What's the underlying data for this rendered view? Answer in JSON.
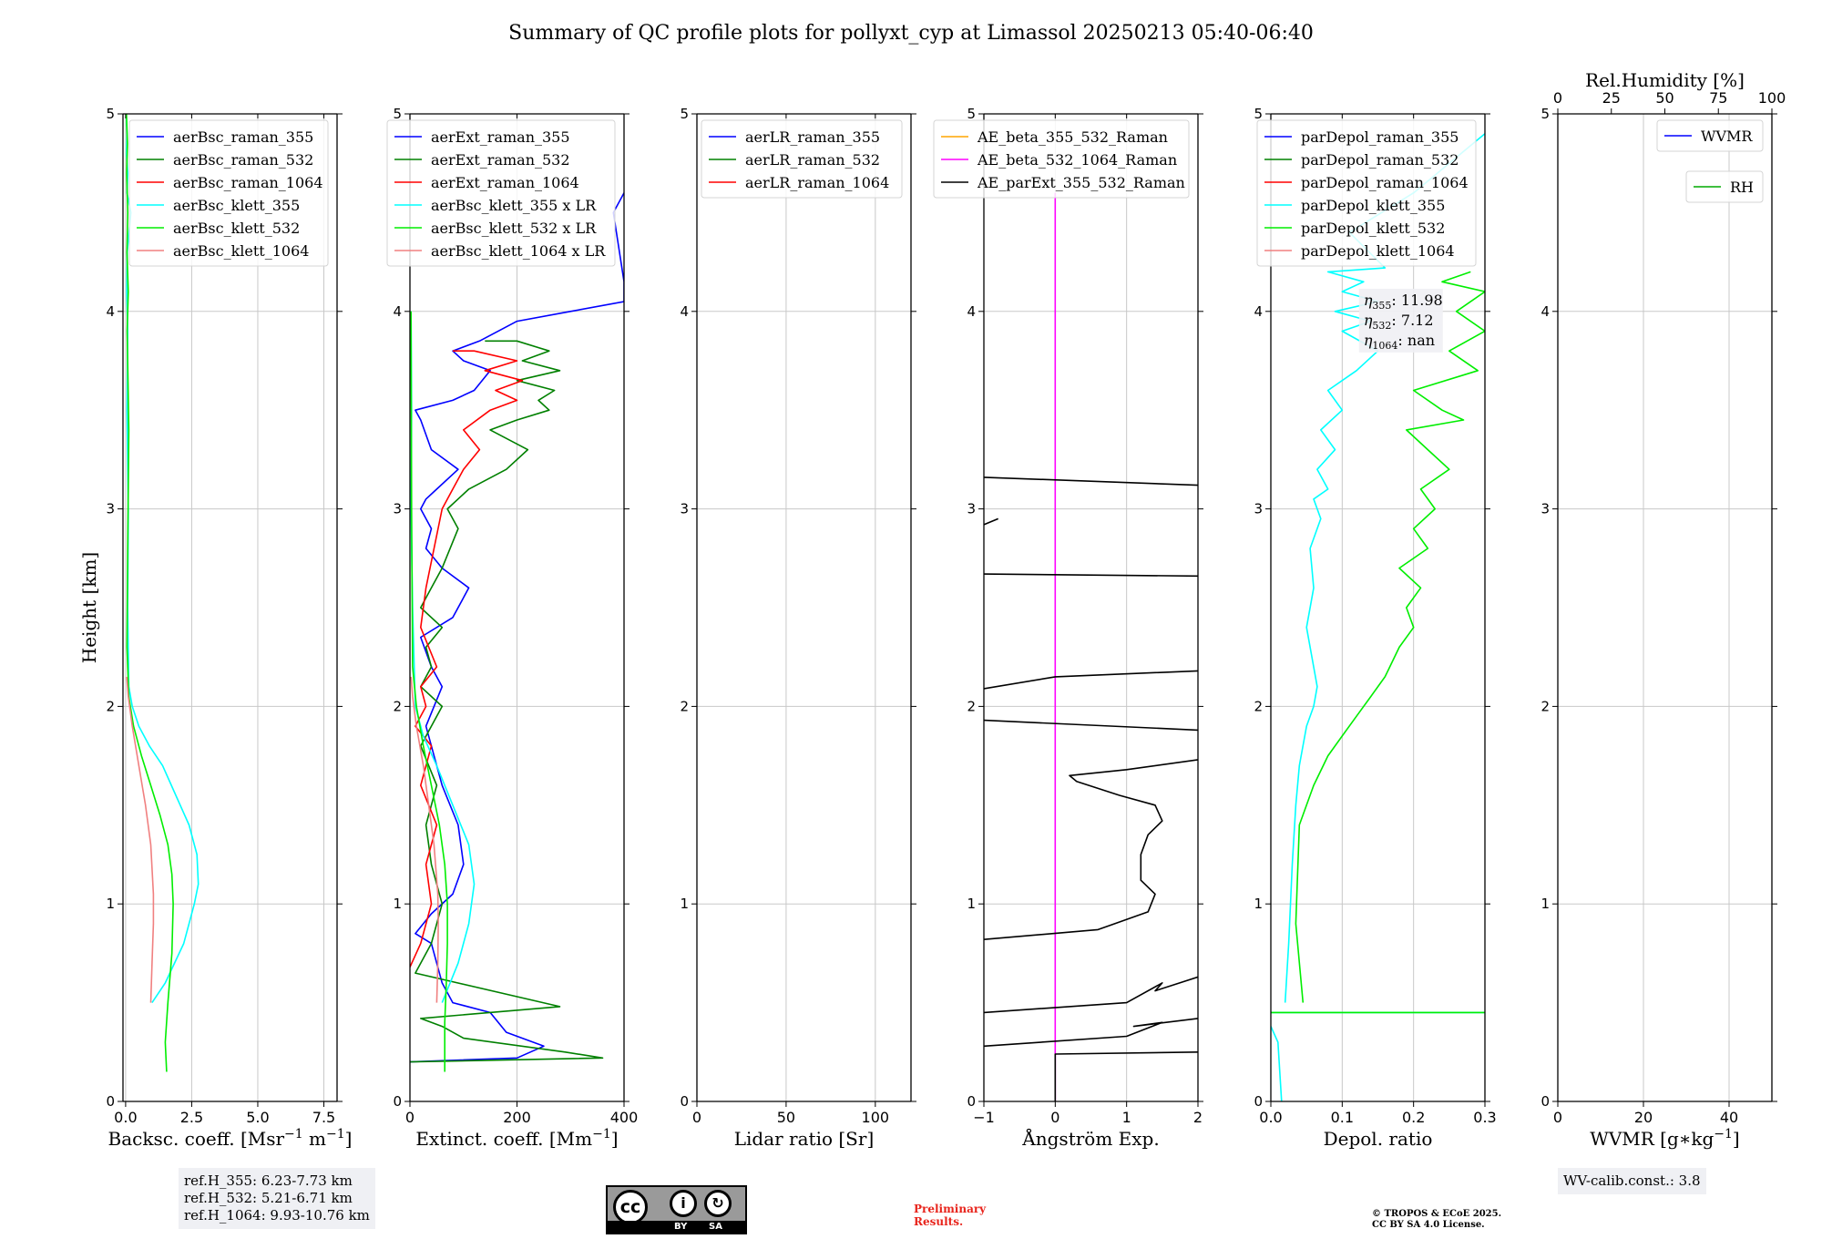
{
  "figure": {
    "title": "Summary of QC profile plots for pollyxt_cyp at Limassol 20250213 05:40-06:40"
  },
  "chart_data": [
    {
      "type": "line",
      "id": "bsc",
      "xlabel": "Backsc. coeff. [Msr",
      "xlabel_sup": "−1",
      "xlabel_mid": " m",
      "xlabel_end": "]",
      "ylabel": "Height [km]",
      "xlim": [
        -0.1,
        8.0
      ],
      "ylim": [
        0,
        5
      ],
      "xticks": [
        0,
        2.5,
        5.0,
        7.5
      ],
      "xticklabels": [
        "0.0",
        "2.5",
        "5.0",
        "7.5"
      ],
      "yticks": [
        0,
        1,
        2,
        3,
        4,
        5
      ],
      "yticklabels": [
        "0",
        "1",
        "2",
        "3",
        "4",
        "5"
      ],
      "legend": "upper right",
      "series": [
        {
          "name": "aerBsc_raman_355",
          "color": "#0000ff",
          "x": [],
          "y": []
        },
        {
          "name": "aerBsc_raman_532",
          "color": "#008000",
          "x": [],
          "y": []
        },
        {
          "name": "aerBsc_raman_1064",
          "color": "#ff0000",
          "x": [],
          "y": []
        },
        {
          "name": "aerBsc_klett_355",
          "color": "#00ffff",
          "x": [
            1.0,
            1.5,
            2.2,
            2.6,
            2.75,
            2.7,
            2.4,
            1.9,
            1.4,
            0.9,
            0.5,
            0.25,
            0.12,
            0.08,
            0.1,
            0.05,
            0.08,
            0.04,
            0.06,
            0.2,
            0.05,
            0.08,
            0.03,
            0.05,
            0.02
          ],
          "y": [
            0.5,
            0.6,
            0.8,
            1.0,
            1.1,
            1.25,
            1.4,
            1.55,
            1.7,
            1.8,
            1.9,
            2.0,
            2.1,
            2.5,
            3.0,
            3.5,
            3.9,
            4.1,
            4.3,
            4.5,
            4.6,
            4.7,
            4.8,
            4.9,
            5.0
          ]
        },
        {
          "name": "aerBsc_klett_532",
          "color": "#00ee00",
          "x": [
            1.55,
            1.5,
            1.6,
            1.75,
            1.8,
            1.75,
            1.6,
            1.3,
            0.95,
            0.6,
            0.3,
            0.12,
            0.05,
            0.08,
            0.12,
            0.06,
            0.1,
            0.05,
            0.08,
            0.04,
            0.07,
            0.03
          ],
          "y": [
            0.15,
            0.3,
            0.5,
            0.75,
            1.0,
            1.15,
            1.3,
            1.45,
            1.6,
            1.75,
            1.9,
            2.05,
            2.3,
            2.8,
            3.4,
            3.9,
            4.1,
            4.3,
            4.5,
            4.7,
            4.85,
            5.0
          ]
        },
        {
          "name": "aerBsc_klett_1064",
          "color": "#f08080",
          "x": [
            0.95,
            1.0,
            1.05,
            1.05,
            0.95,
            0.75,
            0.5,
            0.25,
            0.1,
            0.04
          ],
          "y": [
            0.5,
            0.7,
            0.9,
            1.05,
            1.3,
            1.5,
            1.7,
            1.9,
            2.05,
            2.15
          ]
        }
      ]
    },
    {
      "type": "line",
      "id": "ext",
      "xlabel": "Extinct. coeff. [Mm",
      "xlabel_sup": "−1",
      "xlabel_end": "]",
      "xlim": [
        0,
        400
      ],
      "ylim": [
        0,
        5
      ],
      "xticks": [
        0,
        200,
        400
      ],
      "xticklabels": [
        "0",
        "200",
        "400"
      ],
      "yticks": [
        0,
        1,
        2,
        3,
        4,
        5
      ],
      "yticklabels": [
        "0",
        "1",
        "2",
        "3",
        "4",
        "5"
      ],
      "legend": "upper right",
      "series": [
        {
          "name": "aerExt_raman_355",
          "color": "#0000ff",
          "x": [
            0,
            200,
            250,
            180,
            150,
            80,
            60,
            40,
            10,
            40,
            80,
            100,
            90,
            60,
            30,
            60,
            40,
            20,
            80,
            110,
            60,
            30,
            40,
            20,
            30,
            50,
            90,
            40,
            20,
            10,
            80,
            120,
            150,
            100,
            80,
            130,
            200,
            300,
            400,
            400,
            380,
            400
          ],
          "y": [
            0.2,
            0.22,
            0.28,
            0.35,
            0.45,
            0.5,
            0.6,
            0.8,
            0.85,
            0.95,
            1.05,
            1.2,
            1.4,
            1.6,
            1.9,
            2.1,
            2.2,
            2.35,
            2.45,
            2.6,
            2.7,
            2.8,
            2.9,
            3.0,
            3.05,
            3.1,
            3.2,
            3.3,
            3.45,
            3.5,
            3.55,
            3.6,
            3.7,
            3.75,
            3.8,
            3.85,
            3.95,
            4.0,
            4.05,
            4.15,
            4.5,
            4.6
          ]
        },
        {
          "name": "aerExt_raman_532",
          "color": "#008000",
          "x": [
            0,
            360,
            290,
            100,
            60,
            20,
            280,
            10,
            40,
            60,
            40,
            30,
            50,
            20,
            40,
            60,
            20,
            40,
            30,
            60,
            20,
            40,
            60,
            90,
            70,
            110,
            180,
            220,
            150,
            200,
            260,
            240,
            270,
            200,
            280,
            210,
            260,
            200,
            140
          ],
          "y": [
            0.2,
            0.22,
            0.25,
            0.32,
            0.38,
            0.42,
            0.48,
            0.65,
            0.8,
            1.0,
            1.2,
            1.4,
            1.6,
            1.8,
            1.9,
            2.0,
            2.1,
            2.2,
            2.3,
            2.4,
            2.5,
            2.6,
            2.7,
            2.9,
            3.0,
            3.1,
            3.2,
            3.3,
            3.4,
            3.45,
            3.5,
            3.55,
            3.6,
            3.65,
            3.7,
            3.75,
            3.8,
            3.85,
            3.85
          ]
        },
        {
          "name": "aerExt_raman_1064",
          "color": "#ff0000",
          "x": [
            0,
            20,
            40,
            30,
            50,
            20,
            40,
            10,
            30,
            20,
            50,
            20,
            30,
            60,
            80,
            100,
            130,
            100,
            150,
            200,
            160,
            210,
            140,
            200,
            120,
            80
          ],
          "y": [
            0.68,
            0.8,
            1.0,
            1.2,
            1.4,
            1.6,
            1.8,
            1.9,
            2.0,
            2.1,
            2.2,
            2.4,
            2.6,
            3.0,
            3.1,
            3.2,
            3.3,
            3.4,
            3.5,
            3.55,
            3.6,
            3.65,
            3.7,
            3.75,
            3.8,
            3.8
          ]
        },
        {
          "name": "aerBsc_klett_355 x LR",
          "color": "#00ffff",
          "x": [
            60,
            90,
            110,
            120,
            110,
            80,
            50,
            25,
            10,
            5,
            2,
            3,
            2
          ],
          "y": [
            0.5,
            0.7,
            0.9,
            1.1,
            1.3,
            1.5,
            1.7,
            1.85,
            2.0,
            2.5,
            3.0,
            3.5,
            4.0
          ]
        },
        {
          "name": "aerBsc_klett_532 x LR",
          "color": "#00ee00",
          "x": [
            65,
            65,
            68,
            70,
            70,
            65,
            55,
            40,
            25,
            12,
            5,
            3,
            2
          ],
          "y": [
            0.15,
            0.4,
            0.6,
            0.8,
            1.0,
            1.2,
            1.4,
            1.6,
            1.8,
            2.0,
            2.2,
            3.0,
            4.0
          ]
        },
        {
          "name": "aerBsc_klett_1064 x LR",
          "color": "#f08080",
          "x": [
            50,
            52,
            53,
            52,
            45,
            35,
            25,
            12,
            5,
            2
          ],
          "y": [
            0.5,
            0.7,
            0.9,
            1.05,
            1.3,
            1.5,
            1.7,
            1.9,
            2.05,
            2.15
          ]
        }
      ]
    },
    {
      "type": "line",
      "id": "lr",
      "xlabel": "Lidar ratio [Sr]",
      "xlim": [
        0,
        120
      ],
      "ylim": [
        0,
        5
      ],
      "xticks": [
        0,
        50,
        100
      ],
      "xticklabels": [
        "0",
        "50",
        "100"
      ],
      "yticks": [
        0,
        1,
        2,
        3,
        4,
        5
      ],
      "yticklabels": [
        "0",
        "1",
        "2",
        "3",
        "4",
        "5"
      ],
      "legend": "upper right",
      "series": [
        {
          "name": "aerLR_raman_355",
          "color": "#0000ff",
          "x": [],
          "y": []
        },
        {
          "name": "aerLR_raman_532",
          "color": "#008000",
          "x": [],
          "y": []
        },
        {
          "name": "aerLR_raman_1064",
          "color": "#ff0000",
          "x": [],
          "y": []
        }
      ]
    },
    {
      "type": "line",
      "id": "ae",
      "xlabel": "Ångström Exp.",
      "xlim": [
        -1,
        2
      ],
      "ylim": [
        0,
        5
      ],
      "xticks": [
        -1,
        0,
        1,
        2
      ],
      "xticklabels": [
        "−1",
        "0",
        "1",
        "2"
      ],
      "yticks": [
        0,
        1,
        2,
        3,
        4,
        5
      ],
      "yticklabels": [
        "0",
        "1",
        "2",
        "3",
        "4",
        "5"
      ],
      "legend": "upper right",
      "series": [
        {
          "name": "AE_beta_355_532_Raman",
          "color": "#ffa500",
          "x": [],
          "y": []
        },
        {
          "name": "AE_beta_532_1064_Raman",
          "color": "#ff00ff",
          "x": [
            0,
            0
          ],
          "y": [
            0,
            4.6
          ]
        },
        {
          "name": "AE_parExt_355_532_Raman",
          "color": "#000000",
          "x": [
            0,
            0,
            2.0,
            null,
            -1,
            1.0,
            1.5,
            1.1,
            2.0,
            null,
            -1,
            1.0,
            1.5,
            1.4,
            2.0,
            null,
            -1,
            0.6,
            1.3,
            1.4,
            1.2,
            1.2,
            1.3,
            1.5,
            1.4,
            0.9,
            0.3,
            0.2,
            1.0,
            2.0,
            null,
            -1,
            2.0,
            null,
            -1,
            0.0,
            2.0,
            null,
            -1,
            2.0,
            null,
            -0.8,
            -1,
            null,
            -1,
            2.0
          ],
          "y": [
            0,
            0.24,
            0.25,
            null,
            0.28,
            0.33,
            0.4,
            0.38,
            0.42,
            null,
            0.45,
            0.5,
            0.6,
            0.56,
            0.63,
            null,
            0.82,
            0.87,
            0.96,
            1.05,
            1.12,
            1.25,
            1.35,
            1.42,
            1.5,
            1.55,
            1.62,
            1.65,
            1.68,
            1.73,
            null,
            1.93,
            1.88,
            null,
            2.09,
            2.15,
            2.18,
            null,
            2.67,
            2.66,
            null,
            2.95,
            2.92,
            null,
            3.16,
            3.12
          ]
        }
      ]
    },
    {
      "type": "line",
      "id": "depol",
      "xlabel": "Depol. ratio",
      "xlim": [
        0.0,
        0.3
      ],
      "ylim": [
        0,
        5
      ],
      "xticks": [
        0.0,
        0.1,
        0.2,
        0.3
      ],
      "xticklabels": [
        "0.0",
        "0.1",
        "0.2",
        "0.3"
      ],
      "yticks": [
        0,
        1,
        2,
        3,
        4,
        5
      ],
      "yticklabels": [
        "0",
        "1",
        "2",
        "3",
        "4",
        "5"
      ],
      "legend": "upper right",
      "eta_labels": [
        "11.98",
        "7.12",
        "nan"
      ],
      "series": [
        {
          "name": "parDepol_raman_355",
          "color": "#0000ff",
          "x": [],
          "y": []
        },
        {
          "name": "parDepol_raman_532",
          "color": "#008000",
          "x": [],
          "y": []
        },
        {
          "name": "parDepol_raman_1064",
          "color": "#ff0000",
          "x": [],
          "y": []
        },
        {
          "name": "parDepol_klett_355",
          "color": "#00ffff",
          "x": [
            0.015,
            0.01,
            0.0,
            null,
            0.0,
            0.3,
            null,
            0.02,
            0.025,
            0.03,
            0.035,
            0.04,
            0.05,
            0.06,
            0.065,
            0.06,
            0.05,
            0.06,
            0.055,
            0.07,
            0.06,
            0.08,
            0.065,
            0.09,
            0.07,
            0.1,
            0.08,
            0.12,
            0.15,
            0.1,
            0.14,
            0.09,
            0.15,
            0.1,
            0.13,
            0.08,
            0.16,
            0.11,
            0.2,
            0.3
          ],
          "y": [
            0.0,
            0.3,
            0.38,
            null,
            0.45,
            0.45,
            null,
            0.5,
            0.8,
            1.2,
            1.5,
            1.7,
            1.9,
            2.0,
            2.1,
            2.2,
            2.4,
            2.6,
            2.8,
            2.95,
            3.05,
            3.1,
            3.2,
            3.3,
            3.4,
            3.5,
            3.6,
            3.7,
            3.8,
            3.9,
            3.95,
            4.0,
            4.05,
            4.1,
            4.15,
            4.2,
            4.22,
            4.4,
            4.6,
            4.9
          ]
        },
        {
          "name": "parDepol_klett_532",
          "color": "#00ee00",
          "x": [
            0.0,
            0.3,
            null,
            0.045,
            0.035,
            0.04,
            0.06,
            0.08,
            0.1,
            0.12,
            0.14,
            0.16,
            0.18,
            0.2,
            0.19,
            0.21,
            0.18,
            0.22,
            0.2,
            0.23,
            0.21,
            0.25,
            0.22,
            0.19,
            0.27,
            0.24,
            0.2,
            0.29,
            0.25,
            0.3,
            0.26,
            0.3,
            0.24,
            0.28
          ],
          "y": [
            0.45,
            0.45,
            null,
            0.5,
            0.9,
            1.4,
            1.6,
            1.75,
            1.85,
            1.95,
            2.05,
            2.15,
            2.3,
            2.4,
            2.5,
            2.6,
            2.7,
            2.8,
            2.9,
            3.0,
            3.1,
            3.2,
            3.3,
            3.4,
            3.45,
            3.5,
            3.6,
            3.7,
            3.8,
            3.9,
            4.0,
            4.1,
            4.15,
            4.2
          ]
        },
        {
          "name": "parDepol_klett_1064",
          "color": "#f08080",
          "x": [],
          "y": []
        }
      ]
    },
    {
      "type": "line",
      "id": "wv",
      "xlabel": "WVMR [g∗kg",
      "xlabel_sup": "−1",
      "xlabel_end": "]",
      "xlim": [
        0,
        50
      ],
      "ylim": [
        0,
        5
      ],
      "xticks": [
        0,
        20,
        40
      ],
      "xticklabels": [
        "0",
        "20",
        "40"
      ],
      "yticks": [
        0,
        1,
        2,
        3,
        4,
        5
      ],
      "yticklabels": [
        "0",
        "1",
        "2",
        "3",
        "4",
        "5"
      ],
      "top_xlabel": "Rel.Humidity [%]",
      "top_xlim": [
        0,
        100
      ],
      "top_xticks": [
        0,
        25,
        50,
        75,
        100
      ],
      "top_xticklabels": [
        "0",
        "25",
        "50",
        "75",
        "100"
      ],
      "series": [
        {
          "name": "WVMR",
          "color": "#0000ff",
          "x": [],
          "y": []
        },
        {
          "name": "RH",
          "color": "#00aa00",
          "x": [],
          "y": []
        }
      ]
    }
  ],
  "footer": {
    "ref_h": [
      "ref.H_355: 6.23-7.73 km",
      "ref.H_532: 5.21-6.71 km",
      "ref.H_1064: 9.93-10.76 km"
    ],
    "license_badge": {
      "cc": "cc",
      "by": "BY",
      "sa": "SA"
    },
    "preliminary": [
      "Preliminary",
      "Results."
    ],
    "copyright": [
      "© TROPOS & ECoE 2025.",
      "CC BY SA 4.0 License."
    ],
    "wv_calib": "WV-calib.const.: 3.8"
  }
}
